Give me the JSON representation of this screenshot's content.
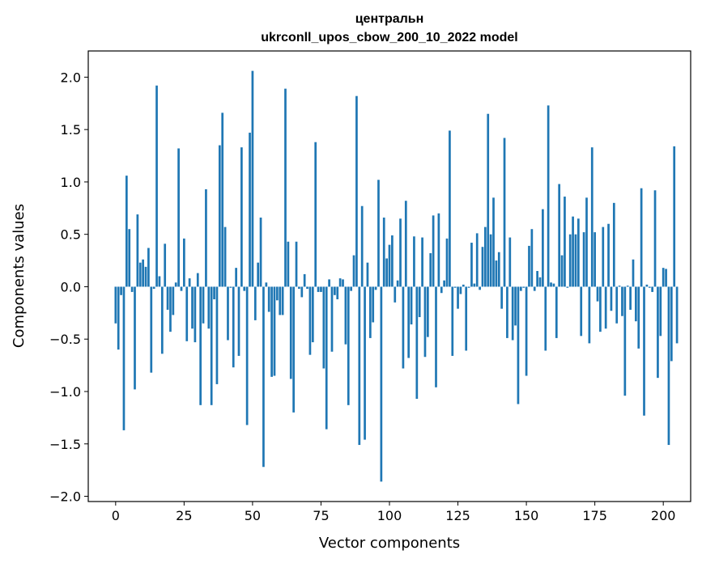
{
  "chart_data": {
    "type": "bar",
    "title": "центральн",
    "subtitle": "ukrconll_upos_cbow_200_10_2022 model",
    "xlabel": "Vector components",
    "ylabel": "Components values",
    "xlim": [
      -10,
      210
    ],
    "ylim": [
      -2.05,
      2.25
    ],
    "xticks": [
      0,
      25,
      50,
      75,
      100,
      125,
      150,
      175,
      200
    ],
    "yticks": [
      -2.0,
      -1.5,
      -1.0,
      -0.5,
      0.0,
      0.5,
      1.0,
      1.5,
      2.0
    ],
    "ytick_labels": [
      "−2.0",
      "−1.5",
      "−1.0",
      "−0.5",
      "0.0",
      "0.5",
      "1.0",
      "1.5",
      "2.0"
    ],
    "bar_color": "#1f77b4",
    "grid": false,
    "values": [
      -0.35,
      -0.6,
      -0.08,
      -1.37,
      1.06,
      0.55,
      -0.05,
      -0.98,
      0.69,
      0.23,
      0.26,
      0.19,
      0.37,
      -0.82,
      -0.02,
      1.92,
      0.1,
      -0.64,
      0.41,
      -0.22,
      -0.43,
      -0.27,
      0.04,
      1.32,
      -0.04,
      0.46,
      -0.52,
      0.08,
      -0.4,
      -0.53,
      0.13,
      -1.13,
      -0.35,
      0.93,
      -0.4,
      -1.13,
      -0.12,
      -0.93,
      1.35,
      1.66,
      0.57,
      -0.51,
      -0.01,
      -0.77,
      0.18,
      -0.66,
      1.33,
      -0.04,
      -1.32,
      1.47,
      2.06,
      -0.32,
      0.23,
      0.66,
      -1.72,
      0.04,
      -0.24,
      -0.86,
      -0.85,
      -0.13,
      -0.27,
      -0.27,
      1.89,
      0.43,
      -0.88,
      -1.2,
      0.43,
      -0.02,
      -0.1,
      0.12,
      -0.02,
      -0.65,
      -0.53,
      1.38,
      -0.05,
      -0.05,
      -0.78,
      -1.36,
      0.07,
      -0.62,
      -0.08,
      -0.12,
      0.08,
      0.07,
      -0.55,
      -1.13,
      -0.04,
      0.3,
      1.82,
      -1.51,
      0.77,
      -1.46,
      0.23,
      -0.49,
      -0.34,
      -0.03,
      1.02,
      -1.86,
      0.66,
      0.27,
      0.4,
      0.49,
      -0.15,
      0.06,
      0.65,
      -0.78,
      0.82,
      -0.68,
      -0.36,
      0.48,
      -1.07,
      -0.29,
      0.47,
      -0.67,
      -0.48,
      0.32,
      0.68,
      -0.96,
      0.7,
      -0.06,
      0.06,
      0.46,
      1.49,
      -0.66,
      -0.01,
      -0.21,
      -0.07,
      0.02,
      -0.61,
      -0.01,
      0.42,
      0.03,
      0.51,
      -0.03,
      0.38,
      0.57,
      1.65,
      0.5,
      0.85,
      0.25,
      0.33,
      -0.21,
      1.42,
      -0.49,
      0.47,
      -0.51,
      -0.37,
      -1.12,
      -0.04,
      -0.01,
      -0.85,
      0.39,
      0.55,
      -0.04,
      0.15,
      0.09,
      0.74,
      -0.61,
      1.73,
      0.04,
      0.03,
      -0.49,
      0.98,
      0.3,
      0.86,
      -0.01,
      0.5,
      0.67,
      0.5,
      0.65,
      -0.47,
      0.52,
      0.85,
      -0.54,
      1.33,
      0.52,
      -0.14,
      -0.43,
      0.57,
      -0.4,
      0.6,
      -0.23,
      0.8,
      -0.35,
      0.01,
      -0.28,
      -1.04,
      0.01,
      -0.22,
      0.26,
      -0.33,
      -0.59,
      0.94,
      -1.23,
      0.02,
      -0.01,
      -0.05,
      0.92,
      -0.87,
      -0.47,
      0.18,
      0.17,
      -1.51,
      -0.71,
      1.34,
      -0.54
    ]
  }
}
